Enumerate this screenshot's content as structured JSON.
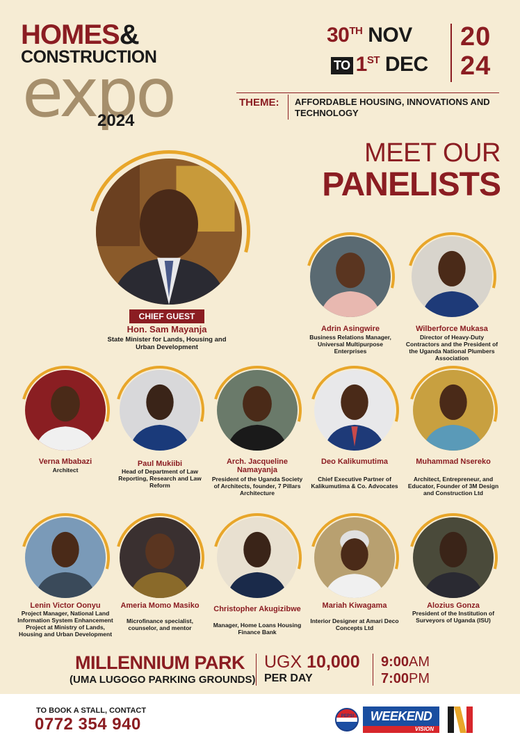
{
  "logo": {
    "line1_a": "HOMES",
    "line1_amp": "&",
    "line2": "CONSTRUCTION",
    "expo": "expo",
    "year": "2024"
  },
  "dates": {
    "start_day": "30",
    "start_sup": "TH",
    "start_month": "NOV",
    "to": "TO",
    "end_day": "1",
    "end_sup": "ST",
    "end_month": "DEC",
    "year_top": "20",
    "year_bottom": "24"
  },
  "theme": {
    "label": "THEME:",
    "text": "AFFORDABLE HOUSING, INNOVATIONS AND TECHNOLOGY"
  },
  "headline": {
    "line1": "MEET OUR",
    "line2": "PANELISTS"
  },
  "chief": {
    "badge": "CHIEF GUEST",
    "name": "Hon. Sam Mayanja",
    "title": "State Minister for Lands, Housing and Urban Development"
  },
  "panelists": [
    {
      "name": "Adrin Asingwire",
      "title": "Business Relations Manager, Universal Multipurpose Enterprises"
    },
    {
      "name": "Wilberforce Mukasa",
      "title": "Director of Heavy-Duty Contractors and the President of the Uganda National Plumbers Association"
    },
    {
      "name": "Verna Mbabazi",
      "title": "Architect"
    },
    {
      "name": "Paul Mukiibi",
      "title": "Head of Department of Law Reporting, Research and Law Reform"
    },
    {
      "name": "Arch. Jacqueline Namayanja",
      "title": "President of the Uganda Society of Architects, founder, 7 Pillars Architecture"
    },
    {
      "name": "Deo Kalikumutima",
      "title": "Chief Executive Partner of Kalikumutima & Co. Advocates"
    },
    {
      "name": "Muhammad Nsereko",
      "title": "Architect, Entrepreneur, and Educator, Founder of 3M Design and Construction Ltd"
    },
    {
      "name": "Lenin Victor Oonyu",
      "title": "Project Manager, National Land Information System Enhancement Project at Ministry of Lands, Housing and Urban Development"
    },
    {
      "name": "Ameria Momo Masiko",
      "title": "Microfinance specialist, counselor, and mentor"
    },
    {
      "name": "Christopher Akugizibwe",
      "title": "Manager, Home Loans Housing Finance Bank"
    },
    {
      "name": "Mariah Kiwagama",
      "title": "Interior Designer at Amari Deco Concepts Ltd"
    },
    {
      "name": "Alozius Gonza",
      "title": "President of the Institution of Surveyors of Uganda (ISU)"
    }
  ],
  "venue": {
    "name": "MILLENNIUM PARK",
    "sub": "(UMA LUGOGO PARKING GROUNDS)",
    "price_currency": "UGX",
    "price_amount": "10,000",
    "price_unit": "PER DAY",
    "time_start_num": "9:00",
    "time_start_ampm": "AM",
    "time_end_num": "7:00",
    "time_end_ampm": "PM"
  },
  "footer": {
    "book_label": "TO BOOK A STALL, CONTACT",
    "phone": "0772 354 940",
    "sponsor_pepsi": "PEPSI",
    "sponsor_weekend": "WEEKEND",
    "sponsor_vision": "VISION"
  },
  "colors": {
    "background": "#f6ecd4",
    "maroon": "#8b1d22",
    "gold": "#e8a62a",
    "expo_tan": "#a68f6c"
  }
}
